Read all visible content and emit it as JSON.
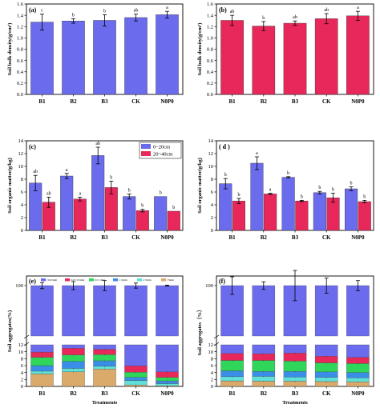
{
  "figure": {
    "xlabel_bottom": "Treatments",
    "legend_cd": [
      "0~20cm",
      "20~40cm"
    ],
    "legend_e": [
      ">0.25mm",
      "0.25~0.5mm",
      "0.5~1mm",
      "1~2mm",
      "2~5mm",
      ">5mm"
    ]
  },
  "colors": {
    "blue": "#6b6bed",
    "red": "#e8285a",
    "frac_025": "#6b6bed",
    "frac_025_05": "#e8285a",
    "frac_05_1": "#2fd65a",
    "frac_1_2": "#3a8ee8",
    "frac_2_5": "#5fe0d8",
    "frac_5": "#d9aa6a"
  },
  "chart_data": [
    {
      "panel": "(a)",
      "type": "bar",
      "ylabel": "Soil bulk density(g/cm³)",
      "categories": [
        "B1",
        "B2",
        "B3",
        "CK",
        "N0P0"
      ],
      "ylim": [
        0,
        1.6
      ],
      "yticks": [
        "0.0",
        "0.2",
        "0.4",
        "0.6",
        "0.8",
        "1.0",
        "1.2",
        "1.4",
        "1.6"
      ],
      "series": [
        {
          "values": [
            1.28,
            1.3,
            1.31,
            1.36,
            1.41
          ],
          "errors": [
            0.14,
            0.04,
            0.1,
            0.06,
            0.06
          ],
          "color": "#6b6bed"
        }
      ],
      "labels": [
        "c",
        "b",
        "b",
        "ab",
        "a"
      ]
    },
    {
      "panel": "(b)",
      "type": "bar",
      "ylabel": "Soil bulk density(g/cm³)",
      "categories": [
        "B1",
        "B2",
        "B3",
        "CK",
        "N0P0"
      ],
      "ylim": [
        0,
        1.6
      ],
      "yticks": [
        "0.0",
        "0.2",
        "0.4",
        "0.6",
        "0.8",
        "1.0",
        "1.2",
        "1.4",
        "1.6"
      ],
      "series": [
        {
          "values": [
            1.31,
            1.21,
            1.26,
            1.34,
            1.39
          ],
          "errors": [
            0.09,
            0.08,
            0.04,
            0.09,
            0.08
          ],
          "color": "#e8285a"
        }
      ],
      "labels": [
        "ab",
        "b",
        "ab",
        "ab",
        "a"
      ]
    },
    {
      "panel": "(c)",
      "type": "bar",
      "ylabel": "Soil organic matter(g/kg)",
      "categories": [
        "B1",
        "B2",
        "B3",
        "CK",
        "N0P0"
      ],
      "ylim": [
        0,
        14
      ],
      "yticks": [
        "0",
        "2",
        "4",
        "6",
        "8",
        "10",
        "12",
        "14"
      ],
      "series": [
        {
          "name": "0~20cm",
          "values": [
            7.4,
            8.5,
            11.7,
            5.3,
            5.3
          ],
          "errors": [
            1.2,
            0.4,
            1.3,
            0.4,
            0.0
          ],
          "color": "#6b6bed"
        },
        {
          "name": "20~40cm",
          "values": [
            4.4,
            4.9,
            6.7,
            3.1,
            3.0
          ],
          "errors": [
            0.8,
            0.3,
            1.0,
            0.2,
            0.0
          ],
          "color": "#e8285a"
        }
      ],
      "labels": [
        [
          "ab",
          "ab"
        ],
        [
          "a",
          "a"
        ],
        [
          "ab",
          "b"
        ],
        [
          "b",
          "b"
        ],
        [
          "b",
          "b"
        ]
      ],
      "legend_position": "top-right"
    },
    {
      "panel": "( d )",
      "type": "bar",
      "ylabel": "Soil organic matter(g/kg)",
      "categories": [
        "B1",
        "B2",
        "B3",
        "CK",
        "N0P0"
      ],
      "ylim": [
        0,
        14
      ],
      "yticks": [
        "0",
        "2",
        "4",
        "6",
        "8",
        "10",
        "12",
        "14"
      ],
      "series": [
        {
          "name": "0~20cm",
          "values": [
            7.3,
            10.5,
            8.3,
            5.9,
            6.5
          ],
          "errors": [
            0.8,
            1.0,
            0.1,
            0.2,
            0.3
          ],
          "color": "#6b6bed"
        },
        {
          "name": "20~40cm",
          "values": [
            4.6,
            5.7,
            4.6,
            5.1,
            4.5
          ],
          "errors": [
            0.4,
            0.1,
            0.1,
            0.7,
            0.2
          ],
          "color": "#e8285a"
        }
      ],
      "labels": [
        [
          "b",
          "b"
        ],
        [
          "a",
          "a"
        ],
        [
          "b",
          "b"
        ],
        [
          "b",
          "b"
        ],
        [
          "b",
          "b"
        ]
      ]
    },
    {
      "panel": "(e)",
      "type": "bar",
      "stacked": true,
      "broken_axis": true,
      "ylabel": "Soil aggregates(%)",
      "xlabel": "Treatments",
      "categories": [
        "B1",
        "B2",
        "B3",
        "CK",
        "N0P0"
      ],
      "ylim_lower": [
        0,
        12
      ],
      "ylim_upper": [
        80,
        100
      ],
      "yticks_lower": [
        "0",
        "2",
        "4",
        "6",
        "8",
        "10",
        "12"
      ],
      "yticks_upper": [
        "100"
      ],
      "series": [
        {
          "name": ">5mm",
          "values": [
            3.6,
            4.2,
            5.0,
            0.4,
            0.2
          ],
          "color": "#d9aa6a"
        },
        {
          "name": "2~5mm",
          "values": [
            0.8,
            1.0,
            0.8,
            1.3,
            0.6
          ],
          "color": "#5fe0d8"
        },
        {
          "name": "1~2mm",
          "values": [
            1.6,
            2.0,
            1.6,
            0.9,
            0.8
          ],
          "color": "#3a8ee8"
        },
        {
          "name": "0.5~1mm",
          "values": [
            2.4,
            1.9,
            1.8,
            1.5,
            1.0
          ],
          "color": "#2fd65a"
        },
        {
          "name": "0.25~0.5mm",
          "values": [
            1.5,
            1.9,
            1.5,
            1.8,
            1.6
          ],
          "color": "#e8285a"
        },
        {
          "name": ">0.25mm",
          "total": 100,
          "color": "#6b6bed"
        }
      ],
      "top_errors": [
        1.2,
        1.6,
        2.0,
        1.0,
        0.2
      ],
      "legend_position": "top"
    },
    {
      "panel": "(f)",
      "type": "bar",
      "stacked": true,
      "broken_axis": true,
      "ylabel": "Soil aggregates（%）",
      "xlabel": "Treatments",
      "categories": [
        "B1",
        "B2",
        "B3",
        "CK",
        "N0P0"
      ],
      "ylim_lower": [
        0,
        12
      ],
      "ylim_upper": [
        80,
        100
      ],
      "yticks_lower": [
        "0",
        "2",
        "4",
        "6",
        "8",
        "10",
        "12"
      ],
      "yticks_upper": [
        "100"
      ],
      "series": [
        {
          "name": ">5mm",
          "values": [
            1.6,
            1.5,
            1.5,
            1.4,
            1.3
          ],
          "color": "#d9aa6a"
        },
        {
          "name": "2~5mm",
          "values": [
            1.2,
            1.4,
            1.2,
            1.2,
            1.2
          ],
          "color": "#5fe0d8"
        },
        {
          "name": "1~2mm",
          "values": [
            1.7,
            1.4,
            1.6,
            1.6,
            1.5
          ],
          "color": "#3a8ee8"
        },
        {
          "name": "0.5~1mm",
          "values": [
            3.0,
            3.2,
            3.0,
            2.6,
            2.6
          ],
          "color": "#2fd65a"
        },
        {
          "name": "0.25~0.5mm",
          "values": [
            2.0,
            1.9,
            2.3,
            1.9,
            1.8
          ],
          "color": "#e8285a"
        },
        {
          "name": ">0.25mm",
          "total": 100,
          "color": "#6b6bed"
        }
      ],
      "top_errors": [
        3.5,
        1.5,
        6.0,
        3.0,
        2.0
      ]
    }
  ]
}
